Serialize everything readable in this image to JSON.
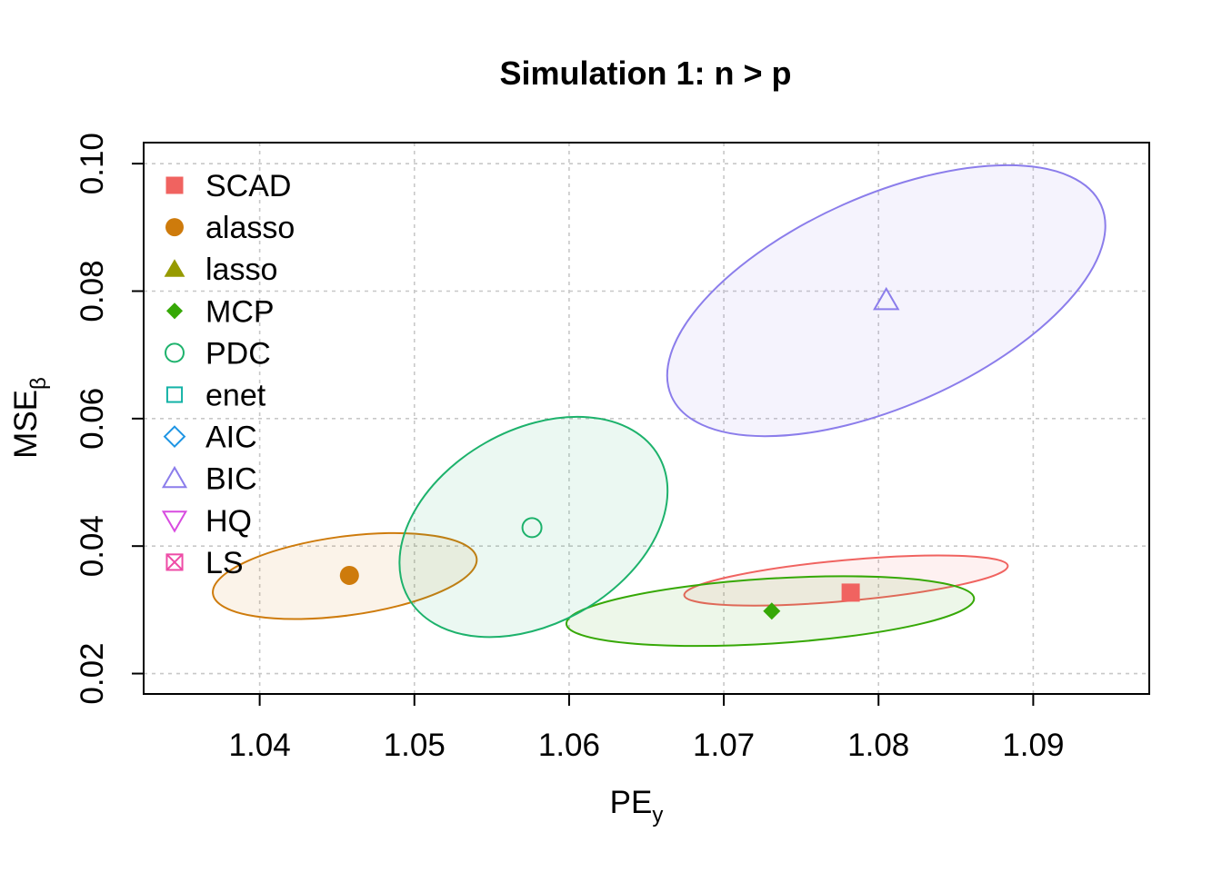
{
  "chart_data": {
    "type": "scatter",
    "title": "Simulation 1: n > p",
    "xlabel": {
      "main": "PE",
      "sub": "y"
    },
    "ylabel": {
      "main": "MSE",
      "sub": "β"
    },
    "xlim": [
      1.0325,
      1.0975
    ],
    "ylim": [
      0.0168,
      0.1033
    ],
    "xticks": [
      "1.04",
      "1.05",
      "1.06",
      "1.07",
      "1.08",
      "1.09"
    ],
    "yticks": [
      "0.02",
      "0.04",
      "0.06",
      "0.08",
      "0.10"
    ],
    "grid": true,
    "legend_position": "top-left",
    "legend": [
      {
        "label": "SCAD",
        "marker": "square-filled",
        "color": "#F06360"
      },
      {
        "label": "alasso",
        "marker": "circle-filled",
        "color": "#CE7B0C"
      },
      {
        "label": "lasso",
        "marker": "triangle-filled",
        "color": "#969A00"
      },
      {
        "label": "MCP",
        "marker": "diamond-filled",
        "color": "#36A806"
      },
      {
        "label": "PDC",
        "marker": "circle-open",
        "color": "#1DB26C"
      },
      {
        "label": "enet",
        "marker": "square-open",
        "color": "#13B2A6"
      },
      {
        "label": "AIC",
        "marker": "diamond-open",
        "color": "#1E95E4"
      },
      {
        "label": "BIC",
        "marker": "triangle-open",
        "color": "#8B7DEB"
      },
      {
        "label": "HQ",
        "marker": "triangle-down-open",
        "color": "#D84BE0"
      },
      {
        "label": "LS",
        "marker": "square-x-open",
        "color": "#EE4BA6"
      }
    ],
    "series": [
      {
        "name": "SCAD",
        "x": 1.0782,
        "y": 0.0327,
        "ellipse": {
          "cx": 1.0779,
          "cy": 0.0346,
          "rx": 0.0105,
          "ry": 0.0032,
          "angle": 5.2
        }
      },
      {
        "name": "alasso",
        "x": 1.0458,
        "y": 0.0354,
        "ellipse": {
          "cx": 1.0455,
          "cy": 0.0353,
          "rx": 0.0086,
          "ry": 0.0062,
          "angle": 7.7
        }
      },
      {
        "name": "MCP",
        "x": 1.0731,
        "y": 0.0298,
        "ellipse": {
          "cx": 1.073,
          "cy": 0.0298,
          "rx": 0.0132,
          "ry": 0.0051,
          "angle": 3.6
        }
      },
      {
        "name": "PDC",
        "x": 1.0576,
        "y": 0.0429,
        "ellipse": {
          "cx": 1.0577,
          "cy": 0.043,
          "rx": 0.0093,
          "ry": 0.0152,
          "angle": 29.5
        }
      },
      {
        "name": "BIC",
        "x": 1.0805,
        "y": 0.0786,
        "ellipse": {
          "cx": 1.0805,
          "cy": 0.0785,
          "rx": 0.0152,
          "ry": 0.0165,
          "angle": 24.0
        }
      }
    ]
  }
}
